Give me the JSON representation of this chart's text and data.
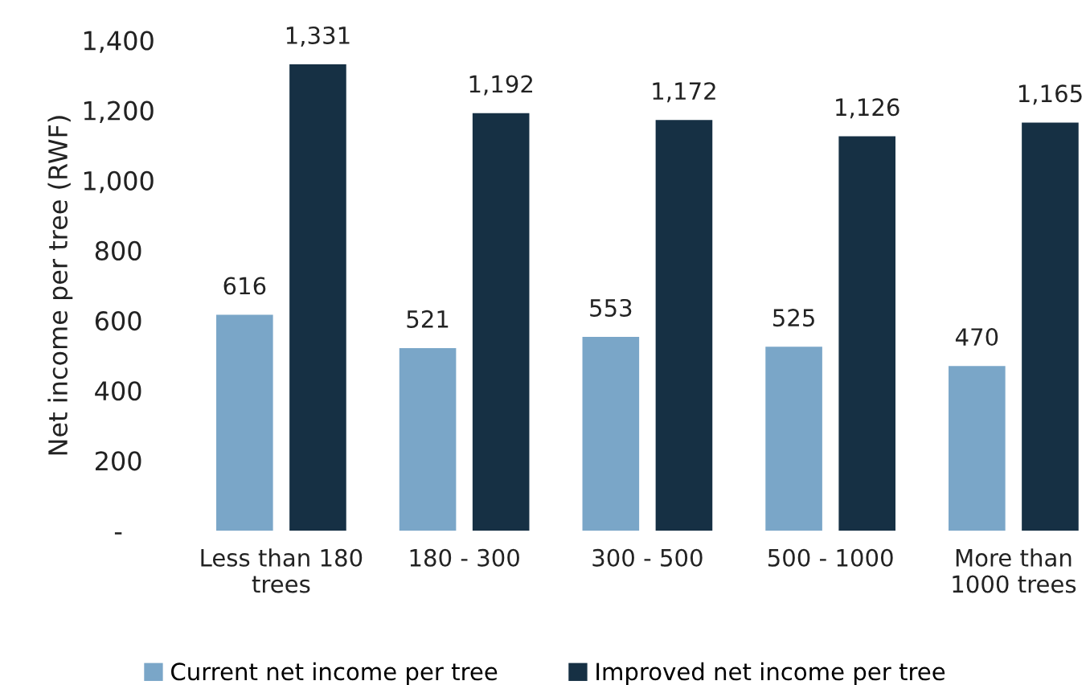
{
  "chart_data": {
    "type": "bar",
    "ylabel": "Net income per tree (RWF)",
    "categories": [
      "Less than 180\ntrees",
      "180 - 300",
      "300 - 500",
      "500 - 1000",
      "More than\n1000 trees"
    ],
    "series": [
      {
        "name": "Current net income per tree",
        "color": "#7aa6c8",
        "values": [
          616,
          521,
          553,
          525,
          470
        ],
        "value_labels": [
          "616",
          "521",
          "553",
          "525",
          "470"
        ]
      },
      {
        "name": "Improved net income per tree",
        "color": "#163044",
        "values": [
          1331,
          1192,
          1172,
          1126,
          1165
        ],
        "value_labels": [
          "1,331",
          "1,192",
          "1,172",
          "1,126",
          "1,165"
        ]
      }
    ],
    "ylim": [
      0,
      1400
    ],
    "yticks": [
      {
        "value": 0,
        "label": "-"
      },
      200,
      400,
      600,
      800,
      {
        "value": 1000,
        "label": "1,000"
      },
      {
        "value": 1200,
        "label": "1,200"
      },
      {
        "value": 1400,
        "label": "1,400"
      }
    ],
    "grid": false,
    "legend": "bottom"
  }
}
